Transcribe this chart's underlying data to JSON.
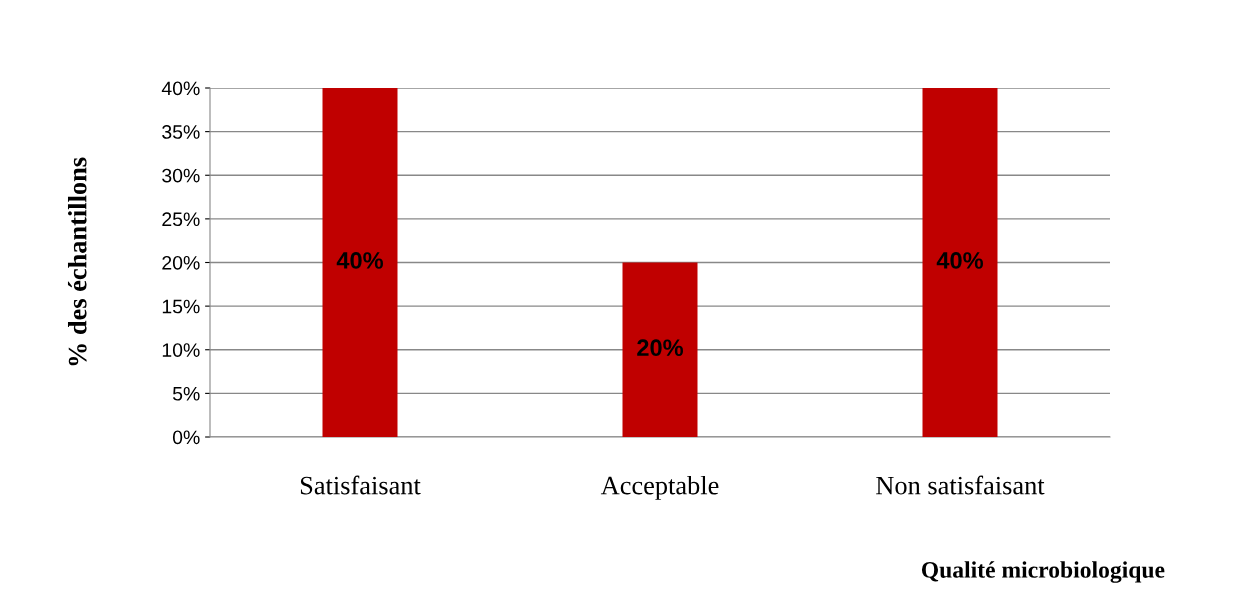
{
  "chart_data": {
    "type": "bar",
    "xlabel": "Qualité microbiologique",
    "ylabel": "% des échantillons",
    "categories": [
      "Satisfaisant",
      "Acceptable",
      "Non satisfaisant"
    ],
    "values": [
      40,
      20,
      40
    ],
    "color": "#c00000",
    "value_labels": [
      "40%",
      "20%",
      "40%"
    ],
    "ylim": [
      0,
      40
    ],
    "yticks": [
      {
        "value": 0,
        "label": "0%"
      },
      {
        "value": 5,
        "label": "5%"
      },
      {
        "value": 10,
        "label": "10%"
      },
      {
        "value": 15,
        "label": "15%"
      },
      {
        "value": 20,
        "label": "20%"
      },
      {
        "value": 25,
        "label": "25%"
      },
      {
        "value": 30,
        "label": "30%"
      },
      {
        "value": 35,
        "label": "35%"
      },
      {
        "value": 40,
        "label": "40%"
      }
    ],
    "grid": "y"
  }
}
